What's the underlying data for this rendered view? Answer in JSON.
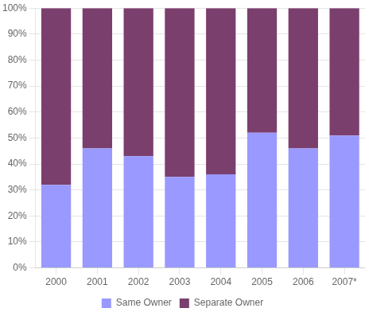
{
  "chart_data": {
    "type": "bar",
    "categories": [
      "2000",
      "2001",
      "2002",
      "2003",
      "2004",
      "2005",
      "2006",
      "2007*"
    ],
    "series": [
      {
        "name": "Same Owner",
        "color": "#9999FF",
        "values": [
          32,
          46,
          43,
          35,
          36,
          52,
          46,
          51
        ]
      },
      {
        "name": "Separate Owner",
        "color": "#7B3F6E",
        "values": [
          68,
          54,
          57,
          65,
          64,
          48,
          54,
          49
        ]
      }
    ],
    "stacked": true,
    "ylim": [
      0,
      100
    ],
    "yticks": [
      {
        "value": 0,
        "label": "0%"
      },
      {
        "value": 10,
        "label": "10%"
      },
      {
        "value": 20,
        "label": "20%"
      },
      {
        "value": 30,
        "label": "30%"
      },
      {
        "value": 40,
        "label": "40%"
      },
      {
        "value": 50,
        "label": "50%"
      },
      {
        "value": 60,
        "label": "60%"
      },
      {
        "value": 70,
        "label": "70%"
      },
      {
        "value": 80,
        "label": "80%"
      },
      {
        "value": 90,
        "label": "90%"
      },
      {
        "value": 100,
        "label": "100%"
      }
    ],
    "grid": true,
    "legend": "bottom"
  }
}
